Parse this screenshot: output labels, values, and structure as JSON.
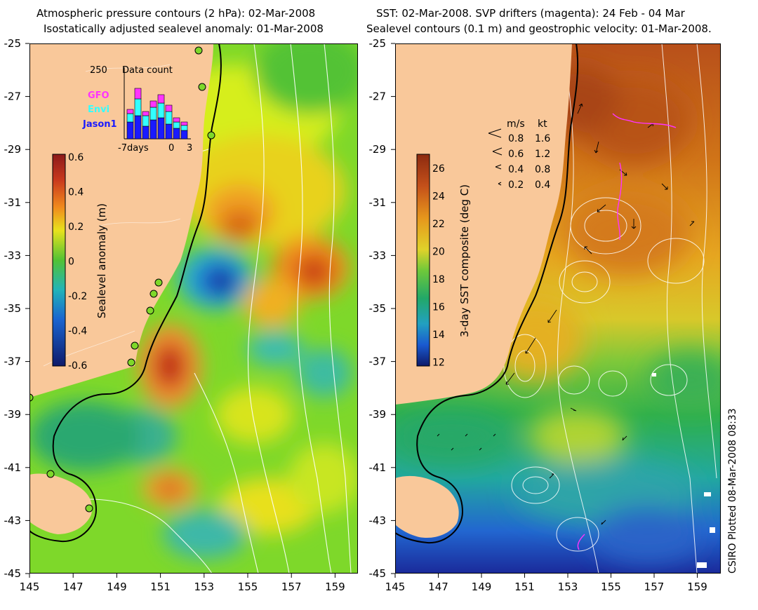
{
  "left_panel": {
    "title_line1": "Atmospheric pressure contours (2 hPa): 02-Mar-2008",
    "title_line2": "Isostatically adjusted sealevel anomaly: 01-Mar-2008",
    "colorbar": {
      "label": "Sealevel anomaly (m)",
      "ticks": [
        "0.6",
        "0.4",
        "0.2",
        "0",
        "-0.2",
        "-0.4",
        "-0.6"
      ]
    },
    "inset": {
      "title": "Data count",
      "ymax_label": "250",
      "legend": [
        {
          "label": "GFO",
          "color": "#ff33ff"
        },
        {
          "label": "Envi",
          "color": "#33ffff"
        },
        {
          "label": "Jason1",
          "color": "#1a1aff"
        }
      ],
      "x_ticks": [
        "-7days",
        "0",
        "3"
      ]
    }
  },
  "right_panel": {
    "title_line1": "SST: 02-Mar-2008. SVP drifters (magenta): 24 Feb - 04 Mar",
    "title_line2": "Sealevel contours (0.1 m) and geostrophic velocity: 01-Mar-2008.",
    "colorbar": {
      "label": "3-day SST composite (deg C)",
      "ticks": [
        "26",
        "24",
        "22",
        "20",
        "18",
        "16",
        "14",
        "12"
      ]
    },
    "speed_legend": {
      "header_ms": "m/s",
      "header_kt": "kt",
      "rows": [
        {
          "ms": "0.8",
          "kt": "1.6"
        },
        {
          "ms": "0.6",
          "kt": "1.2"
        },
        {
          "ms": "0.4",
          "kt": "0.8"
        },
        {
          "ms": "0.2",
          "kt": "0.4"
        }
      ]
    }
  },
  "axes": {
    "lat_ticks": [
      "-25",
      "-27",
      "-29",
      "-31",
      "-33",
      "-35",
      "-37",
      "-39",
      "-41",
      "-43",
      "-45"
    ],
    "lon_ticks": [
      "145",
      "147",
      "149",
      "151",
      "153",
      "155",
      "157",
      "159"
    ]
  },
  "credit": "CSIRO Plotted 08-Mar-2008 08:33",
  "colors": {
    "land": "#f9c89a",
    "sla_positive": "#c8281c",
    "sla_negative": "#1a2a9a",
    "sst_warm": "#c86414",
    "sst_cool": "#1a44c8",
    "contour": "#ffffff",
    "drifter": "#ff33ff"
  }
}
